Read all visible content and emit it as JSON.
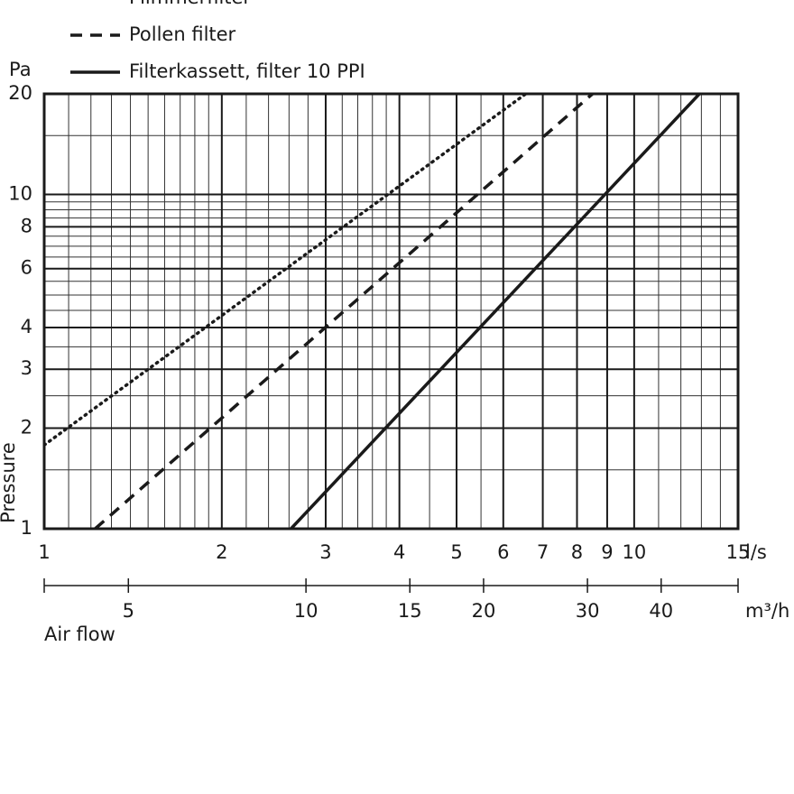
{
  "chart_data": {
    "type": "line",
    "y_label": "Pressure",
    "y_unit": "Pa",
    "x_unit": "l/s",
    "x2_unit": "m³/h",
    "x_label": "Air flow",
    "log_x": true,
    "log_y": true,
    "grid": true,
    "xlim": [
      1,
      15
    ],
    "xticks": [
      1,
      2,
      3,
      4,
      5,
      6,
      7,
      8,
      9,
      10,
      15
    ],
    "xminorticks": [
      1.1,
      1.2,
      1.3,
      1.4,
      1.5,
      1.6,
      1.7,
      1.8,
      1.9,
      2.2,
      2.4,
      2.6,
      2.8,
      3.2,
      3.4,
      3.6,
      3.8,
      4.5,
      5.5,
      11,
      12,
      13,
      14
    ],
    "ylim": [
      1,
      20
    ],
    "yticks": [
      1,
      2,
      3,
      4,
      6,
      8,
      10,
      20
    ],
    "yminorticks": [
      1.5,
      2.5,
      3.5,
      4.5,
      5,
      5.5,
      6.5,
      7,
      7.5,
      8.5,
      9,
      9.5,
      15
    ],
    "x2lim": [
      3.6,
      54
    ],
    "x2ticks": [
      5,
      10,
      15,
      20,
      30,
      40
    ],
    "series": [
      {
        "name": "Flimmerfilter",
        "color": "#1a1a1a",
        "style": "dotted",
        "x": [
          1,
          6.55
        ],
        "values": [
          1.78,
          20
        ]
      },
      {
        "name": "Pollen filter",
        "color": "#1a1a1a",
        "style": "dashed",
        "x": [
          1.22,
          8.5
        ],
        "values": [
          1,
          20
        ]
      },
      {
        "name": "Filterkassett, filter 10 PPI",
        "color": "#1a1a1a",
        "style": "solid",
        "x": [
          2.62,
          12.9
        ],
        "values": [
          1,
          20
        ]
      }
    ]
  }
}
